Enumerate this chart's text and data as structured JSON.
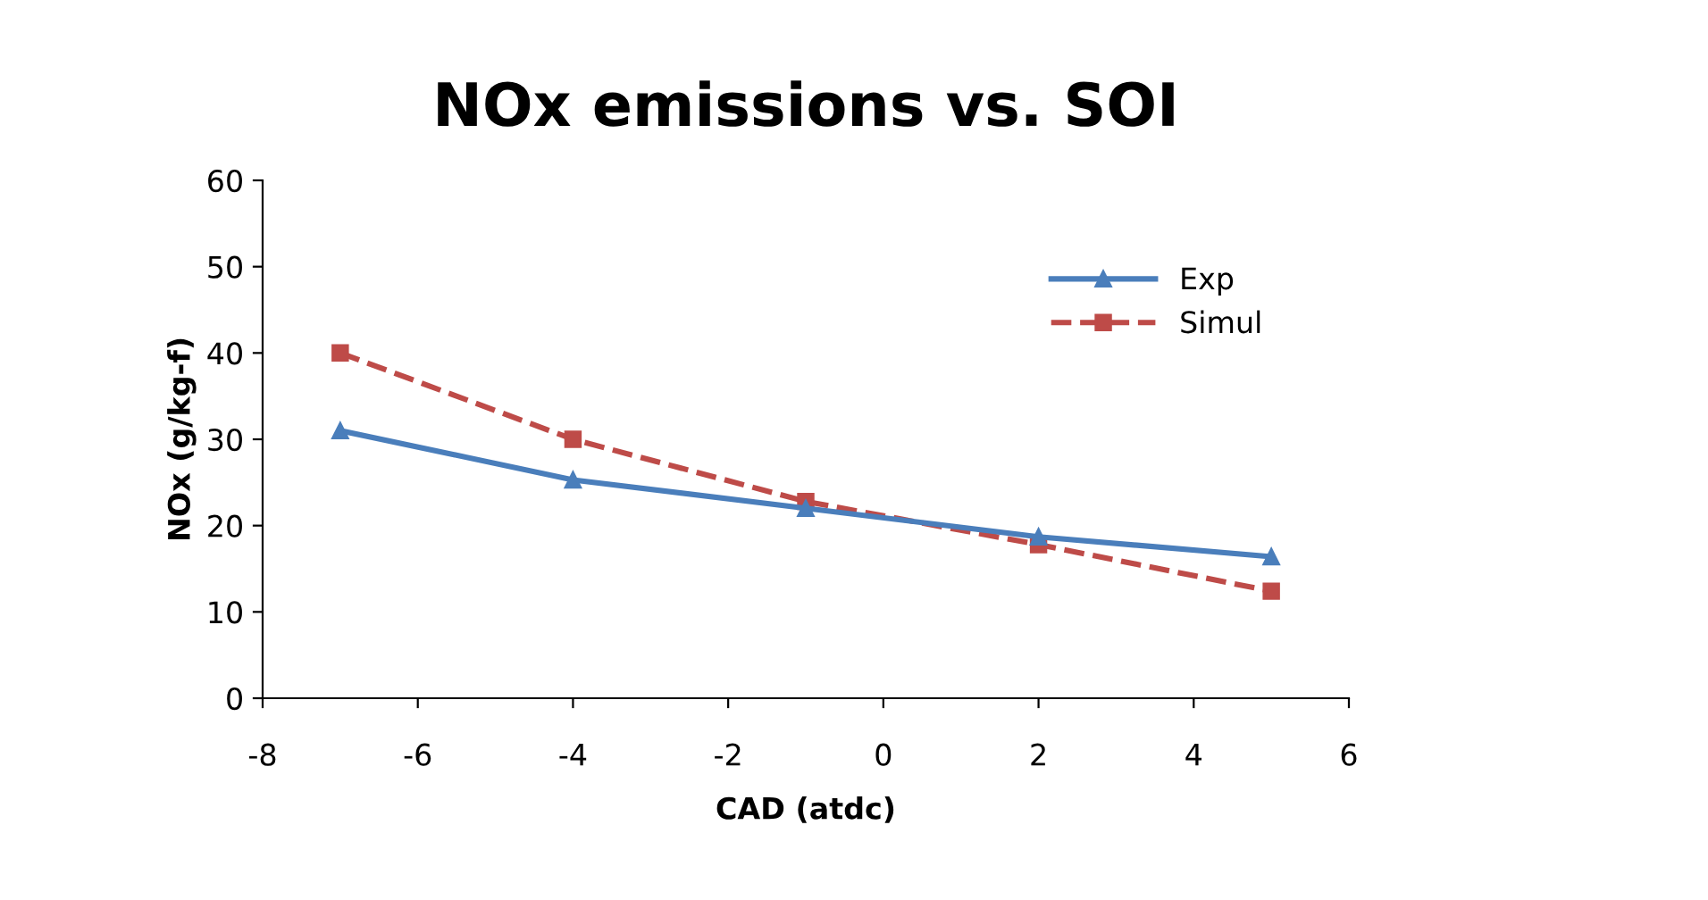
{
  "chart_data": {
    "type": "line",
    "title": "NOx emissions vs. SOI",
    "xlabel": "CAD (atdc)",
    "ylabel": "NOx (g/kg-f)",
    "x": [
      -7,
      -4,
      -1,
      2,
      5
    ],
    "series": [
      {
        "name": "Exp",
        "color": "#4a7ebb",
        "values": [
          31,
          25.3,
          22,
          18.7,
          16.4
        ],
        "marker": "triangle",
        "line_style": "solid"
      },
      {
        "name": "Simul",
        "color": "#be4b48",
        "values": [
          40,
          30,
          22.8,
          17.8,
          12.4
        ],
        "marker": "square",
        "line_style": "dashed"
      }
    ],
    "xlim": [
      -8,
      6
    ],
    "xticks": [
      -8,
      -6,
      -4,
      -2,
      0,
      2,
      4,
      6
    ],
    "ylim": [
      0,
      60
    ],
    "yticks": [
      0,
      10,
      20,
      30,
      40,
      50,
      60
    ],
    "grid": false,
    "legend": "top right"
  }
}
